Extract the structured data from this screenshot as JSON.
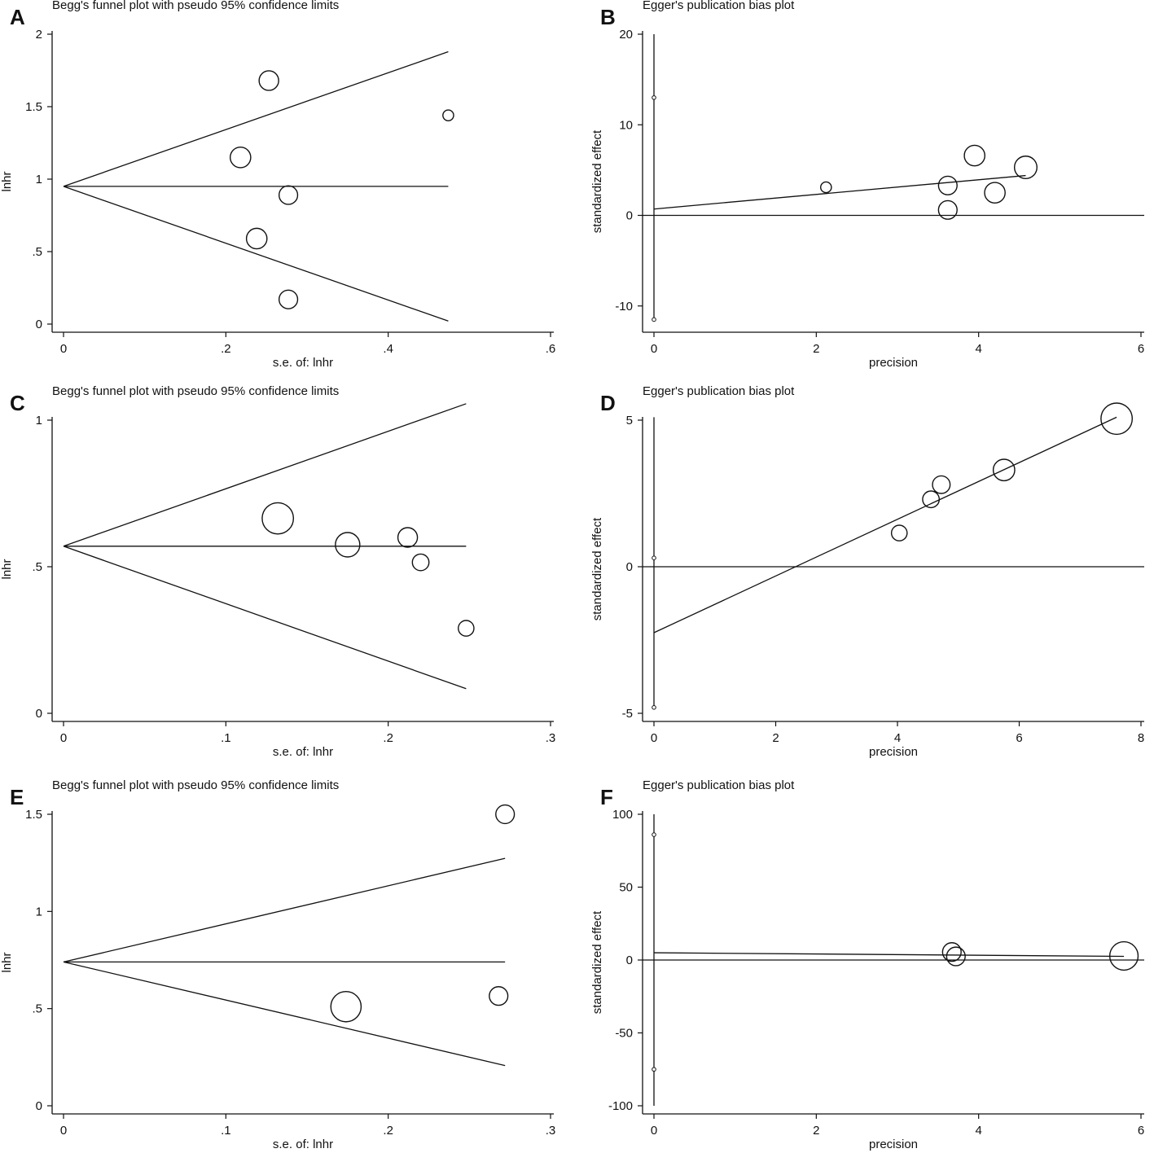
{
  "figure": {
    "background": "#ffffff",
    "ink": "#111111"
  },
  "chart_data": [
    {
      "panel": "A",
      "type": "scatter",
      "kind": "begg",
      "title": "Begg's funnel plot with pseudo 95% confidence limits",
      "xlabel": "s.e. of: lnhr",
      "ylabel": "lnhr",
      "xlim": [
        0,
        0.6
      ],
      "ylim": [
        0,
        2
      ],
      "xticks": [
        0,
        0.2,
        0.4,
        0.6
      ],
      "xtick_labels": [
        "0",
        ".2",
        ".4",
        ".6"
      ],
      "yticks": [
        0,
        0.5,
        1,
        1.5,
        2
      ],
      "ytick_labels": [
        "0",
        ".5",
        "1",
        "1.5",
        "2"
      ],
      "pooled": 0.95,
      "se_max": 0.474,
      "points": [
        {
          "x": 0.253,
          "y": 1.68,
          "size": 1.0
        },
        {
          "x": 0.474,
          "y": 1.44,
          "size": 0.55
        },
        {
          "x": 0.218,
          "y": 1.15,
          "size": 1.05
        },
        {
          "x": 0.277,
          "y": 0.89,
          "size": 0.95
        },
        {
          "x": 0.238,
          "y": 0.59,
          "size": 1.05
        },
        {
          "x": 0.277,
          "y": 0.17,
          "size": 0.95
        }
      ]
    },
    {
      "panel": "B",
      "type": "scatter",
      "kind": "egger",
      "title": "Egger's publication bias plot",
      "xlabel": "precision",
      "ylabel": "standardized effect",
      "xlim": [
        0,
        6
      ],
      "ylim": [
        -12,
        20
      ],
      "xticks": [
        0,
        2,
        4,
        6
      ],
      "xtick_labels": [
        "0",
        "2",
        "4",
        "6"
      ],
      "yticks": [
        -10,
        0,
        10,
        20
      ],
      "ytick_labels": [
        "-10",
        "0",
        "10",
        "20"
      ],
      "intercept_ci": [
        -11.5,
        13
      ],
      "ci_bar_top": 20,
      "fit_line": {
        "x": [
          0,
          4.58
        ],
        "y": [
          0.7,
          4.4
        ]
      },
      "points": [
        {
          "x": 2.12,
          "y": 3.1,
          "size": 0.55
        },
        {
          "x": 3.62,
          "y": 3.3,
          "size": 0.95
        },
        {
          "x": 3.62,
          "y": 0.6,
          "size": 0.95
        },
        {
          "x": 3.95,
          "y": 6.6,
          "size": 1.05
        },
        {
          "x": 4.2,
          "y": 2.5,
          "size": 1.05
        },
        {
          "x": 4.58,
          "y": 5.3,
          "size": 1.15
        }
      ]
    },
    {
      "panel": "C",
      "type": "scatter",
      "kind": "begg",
      "title": "Begg's funnel plot with pseudo 95% confidence limits",
      "xlabel": "s.e. of: lnhr",
      "ylabel": "lnhr",
      "xlim": [
        0,
        0.3
      ],
      "ylim": [
        0,
        1
      ],
      "xticks": [
        0,
        0.1,
        0.2,
        0.3
      ],
      "xtick_labels": [
        "0",
        ".1",
        ".2",
        ".3"
      ],
      "yticks": [
        0,
        0.5,
        1
      ],
      "ytick_labels": [
        "0",
        ".5",
        "1"
      ],
      "pooled": 0.57,
      "se_max": 0.248,
      "points": [
        {
          "x": 0.132,
          "y": 0.665,
          "size": 1.6
        },
        {
          "x": 0.175,
          "y": 0.575,
          "size": 1.25
        },
        {
          "x": 0.212,
          "y": 0.6,
          "size": 1.0
        },
        {
          "x": 0.22,
          "y": 0.515,
          "size": 0.85
        },
        {
          "x": 0.248,
          "y": 0.29,
          "size": 0.8
        }
      ]
    },
    {
      "panel": "D",
      "type": "scatter",
      "kind": "egger",
      "title": "Egger's publication bias plot",
      "xlabel": "precision",
      "ylabel": "standardized effect",
      "xlim": [
        0,
        8
      ],
      "ylim": [
        -5,
        5
      ],
      "xticks": [
        0,
        2,
        4,
        6,
        8
      ],
      "xtick_labels": [
        "0",
        "2",
        "4",
        "6",
        "8"
      ],
      "yticks": [
        -5,
        0,
        5
      ],
      "ytick_labels": [
        "-5",
        "0",
        "5"
      ],
      "intercept_ci": [
        -4.8,
        0.3
      ],
      "ci_bar_top": 5.1,
      "fit_line": {
        "x": [
          0,
          7.6
        ],
        "y": [
          -2.25,
          5.1
        ]
      },
      "points": [
        {
          "x": 4.03,
          "y": 1.15,
          "size": 0.8
        },
        {
          "x": 4.55,
          "y": 2.3,
          "size": 0.85
        },
        {
          "x": 4.72,
          "y": 2.8,
          "size": 0.9
        },
        {
          "x": 5.75,
          "y": 3.3,
          "size": 1.1
        },
        {
          "x": 7.6,
          "y": 5.05,
          "size": 1.6
        }
      ]
    },
    {
      "panel": "E",
      "type": "scatter",
      "kind": "begg",
      "title": "Begg's funnel plot with pseudo 95% confidence limits",
      "xlabel": "s.e. of: lnhr",
      "ylabel": "lnhr",
      "xlim": [
        0,
        0.3
      ],
      "ylim": [
        0,
        1.5
      ],
      "xticks": [
        0,
        0.1,
        0.2,
        0.3
      ],
      "xtick_labels": [
        "0",
        ".1",
        ".2",
        ".3"
      ],
      "yticks": [
        0,
        0.5,
        1,
        1.5
      ],
      "ytick_labels": [
        "0",
        ".5",
        "1",
        "1.5"
      ],
      "pooled": 0.74,
      "se_max": 0.272,
      "points": [
        {
          "x": 0.272,
          "y": 1.5,
          "size": 0.95
        },
        {
          "x": 0.174,
          "y": 0.51,
          "size": 1.55
        },
        {
          "x": 0.268,
          "y": 0.565,
          "size": 0.95
        }
      ]
    },
    {
      "panel": "F",
      "type": "scatter",
      "kind": "egger",
      "title": "Egger's publication bias plot",
      "xlabel": "precision",
      "ylabel": "standardized effect",
      "xlim": [
        0,
        6
      ],
      "ylim": [
        -100,
        100
      ],
      "xticks": [
        0,
        2,
        4,
        6
      ],
      "xtick_labels": [
        "0",
        "2",
        "4",
        "6"
      ],
      "yticks": [
        -100,
        -50,
        0,
        50,
        100
      ],
      "ytick_labels": [
        "-100",
        "-50",
        "0",
        "50",
        "100"
      ],
      "intercept_ci": [
        -75,
        86
      ],
      "ci_bar_top": 100,
      "ci_bar_bottom": -100,
      "fit_line": {
        "x": [
          0,
          5.79
        ],
        "y": [
          5,
          2.5
        ]
      },
      "points": [
        {
          "x": 3.67,
          "y": 5.5,
          "size": 0.95
        },
        {
          "x": 3.72,
          "y": 2.5,
          "size": 0.95
        },
        {
          "x": 5.79,
          "y": 2.8,
          "size": 1.45
        }
      ]
    }
  ]
}
